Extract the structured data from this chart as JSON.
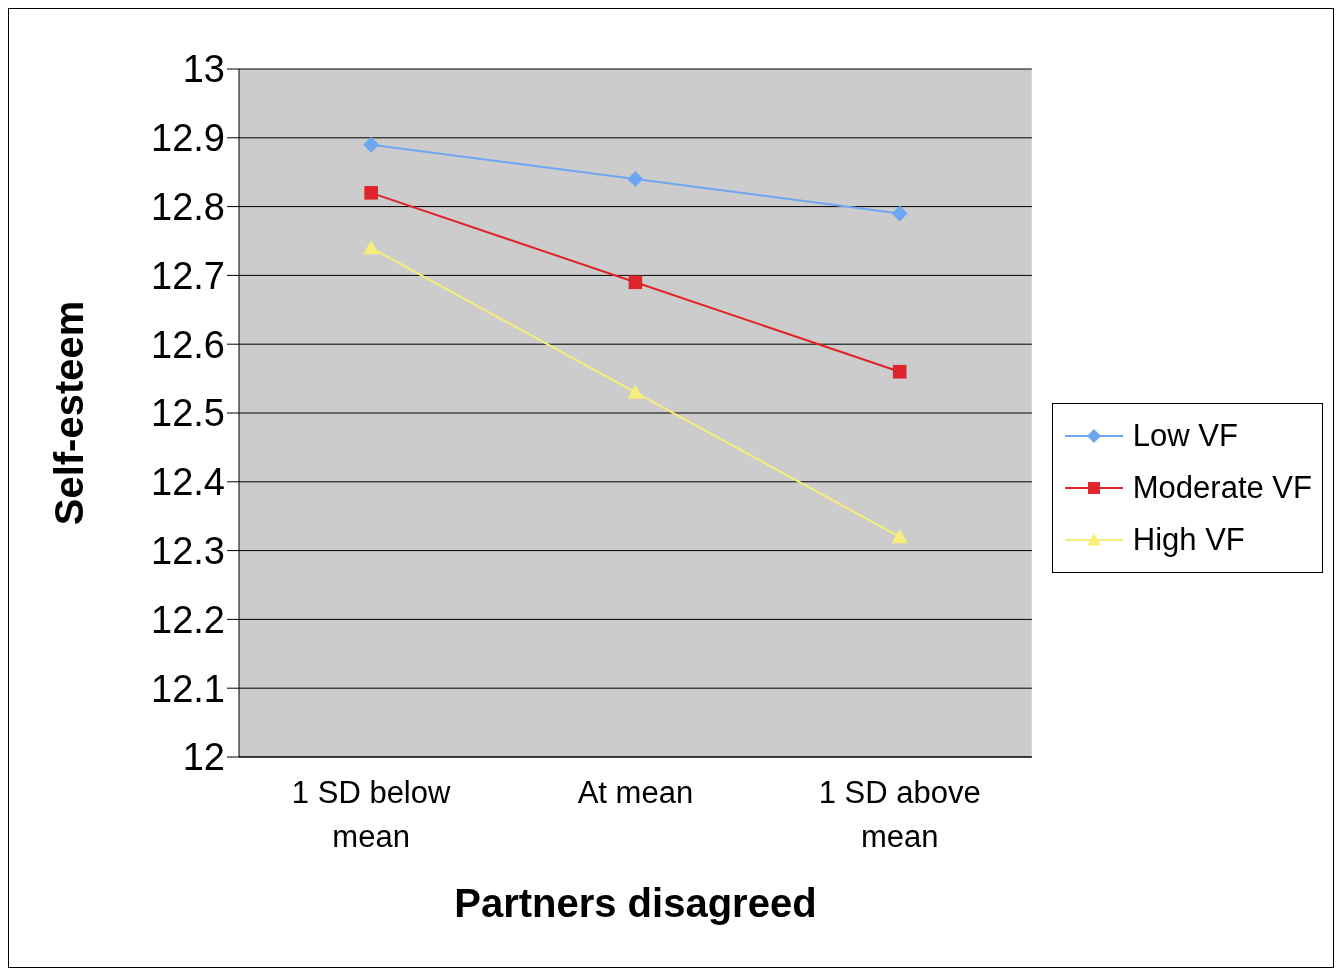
{
  "chart_data": {
    "type": "line",
    "xlabel": "Partners disagreed",
    "ylabel": "Self-esteem",
    "categories": [
      "1 SD below mean",
      "At mean",
      "1 SD above mean"
    ],
    "series": [
      {
        "name": "Low VF",
        "color": "#6ea6f2",
        "marker": "diamond",
        "values": [
          12.89,
          12.84,
          12.79
        ]
      },
      {
        "name": "Moderate VF",
        "color": "#e0242c",
        "marker": "square",
        "values": [
          12.82,
          12.69,
          12.56
        ]
      },
      {
        "name": "High VF",
        "color": "#f5ee7a",
        "marker": "triangle",
        "values": [
          12.74,
          12.53,
          12.32
        ]
      }
    ],
    "ylim": [
      12,
      13
    ],
    "yticks": [
      12,
      12.1,
      12.2,
      12.3,
      12.4,
      12.5,
      12.6,
      12.7,
      12.8,
      12.9,
      13
    ],
    "grid": "y",
    "legend": "right"
  }
}
